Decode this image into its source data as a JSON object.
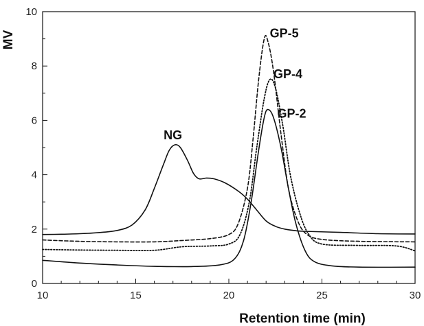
{
  "chart_data": {
    "type": "line",
    "title": "",
    "xlabel": "Retention time (min)",
    "ylabel": "MV",
    "xlim": [
      10,
      30
    ],
    "ylim": [
      0,
      10
    ],
    "xticks": [
      10,
      15,
      20,
      25,
      30
    ],
    "yticks": [
      0,
      2,
      4,
      6,
      8,
      10
    ],
    "grid": false,
    "legend": "none",
    "series": [
      {
        "id": "ng",
        "dash": "solid",
        "color": "#111111",
        "points": [
          [
            10,
            1.8
          ],
          [
            11,
            1.81
          ],
          [
            12,
            1.83
          ],
          [
            13,
            1.87
          ],
          [
            14,
            1.95
          ],
          [
            14.8,
            2.15
          ],
          [
            15.5,
            2.7
          ],
          [
            16,
            3.5
          ],
          [
            16.5,
            4.4
          ],
          [
            16.8,
            4.9
          ],
          [
            17.1,
            5.1
          ],
          [
            17.4,
            5.0
          ],
          [
            17.8,
            4.5
          ],
          [
            18.1,
            4.05
          ],
          [
            18.4,
            3.85
          ],
          [
            18.8,
            3.88
          ],
          [
            19.2,
            3.85
          ],
          [
            19.8,
            3.7
          ],
          [
            20.5,
            3.4
          ],
          [
            21,
            3.1
          ],
          [
            21.5,
            2.7
          ],
          [
            22,
            2.3
          ],
          [
            22.5,
            2.1
          ],
          [
            23,
            2.0
          ],
          [
            23.5,
            1.95
          ],
          [
            24,
            1.92
          ],
          [
            26,
            1.88
          ],
          [
            28,
            1.83
          ],
          [
            30,
            1.82
          ]
        ]
      },
      {
        "id": "gp-5",
        "dash": "dashed",
        "color": "#111111",
        "points": [
          [
            10,
            1.6
          ],
          [
            12,
            1.55
          ],
          [
            14,
            1.53
          ],
          [
            16,
            1.53
          ],
          [
            17.5,
            1.58
          ],
          [
            19,
            1.65
          ],
          [
            20,
            1.8
          ],
          [
            20.5,
            2.2
          ],
          [
            21,
            3.5
          ],
          [
            21.3,
            5.3
          ],
          [
            21.6,
            7.5
          ],
          [
            21.9,
            9.0
          ],
          [
            22.1,
            8.9
          ],
          [
            22.4,
            7.8
          ],
          [
            22.8,
            5.5
          ],
          [
            23.2,
            3.5
          ],
          [
            23.7,
            2.3
          ],
          [
            24.2,
            1.8
          ],
          [
            25,
            1.62
          ],
          [
            27,
            1.55
          ],
          [
            30,
            1.53
          ]
        ]
      },
      {
        "id": "gp-4",
        "dash": "dotted",
        "color": "#111111",
        "points": [
          [
            10,
            1.25
          ],
          [
            12,
            1.23
          ],
          [
            14,
            1.22
          ],
          [
            16,
            1.22
          ],
          [
            17.5,
            1.35
          ],
          [
            19,
            1.38
          ],
          [
            20,
            1.45
          ],
          [
            20.6,
            1.8
          ],
          [
            21.1,
            3.0
          ],
          [
            21.5,
            5.0
          ],
          [
            21.9,
            6.8
          ],
          [
            22.2,
            7.5
          ],
          [
            22.5,
            7.2
          ],
          [
            22.9,
            5.8
          ],
          [
            23.3,
            4.0
          ],
          [
            23.8,
            2.6
          ],
          [
            24.3,
            1.8
          ],
          [
            25,
            1.45
          ],
          [
            27,
            1.4
          ],
          [
            29,
            1.38
          ],
          [
            30,
            1.2
          ]
        ]
      },
      {
        "id": "gp-2",
        "dash": "solid",
        "color": "#111111",
        "points": [
          [
            10,
            0.85
          ],
          [
            12,
            0.75
          ],
          [
            14,
            0.68
          ],
          [
            16,
            0.63
          ],
          [
            18,
            0.62
          ],
          [
            19.5,
            0.68
          ],
          [
            20.3,
            0.9
          ],
          [
            20.8,
            1.6
          ],
          [
            21.2,
            3.0
          ],
          [
            21.6,
            4.9
          ],
          [
            21.9,
            6.1
          ],
          [
            22.1,
            6.4
          ],
          [
            22.4,
            6.1
          ],
          [
            22.8,
            5.0
          ],
          [
            23.2,
            3.5
          ],
          [
            23.6,
            2.2
          ],
          [
            24.1,
            1.2
          ],
          [
            24.6,
            0.8
          ],
          [
            25.5,
            0.65
          ],
          [
            27,
            0.6
          ],
          [
            30,
            0.6
          ]
        ]
      }
    ],
    "annotations": [
      {
        "text": "NG",
        "x": 16.5,
        "y": 5.3
      },
      {
        "text": "GP-5",
        "x": 22.2,
        "y": 9.05
      },
      {
        "text": "GP-4",
        "x": 22.4,
        "y": 7.55
      },
      {
        "text": "GP-2",
        "x": 22.6,
        "y": 6.1
      }
    ]
  }
}
